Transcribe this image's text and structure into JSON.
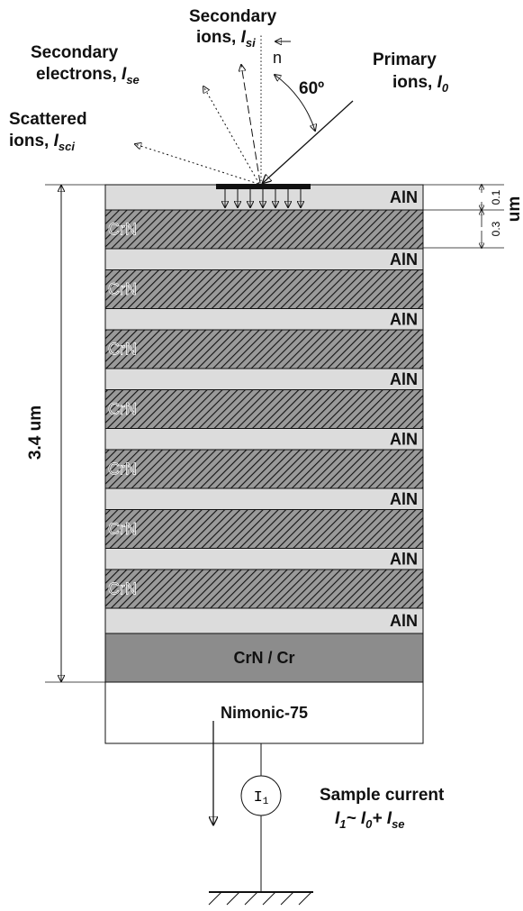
{
  "labels": {
    "secondary_ions": {
      "line1": "Secondary",
      "line2": "ions, ",
      "symbol": "I",
      "sub": "si"
    },
    "normal": "n",
    "angle": "60º",
    "primary_ions": {
      "line1": "Primary",
      "line2": "ions, ",
      "symbol": "I",
      "sub": "0"
    },
    "secondary_electrons": {
      "line1": "Secondary",
      "line2": "electrons, ",
      "symbol": "I",
      "sub": "se"
    },
    "scattered_ions": {
      "line1": "Scattered",
      "line2": "ions, ",
      "symbol": "I",
      "sub": "sci"
    }
  },
  "layers": [
    "AlN",
    "CrN",
    "AlN",
    "CrN",
    "AlN",
    "CrN",
    "AlN",
    "CrN",
    "AlN",
    "CrN",
    "AlN",
    "CrN",
    "AlN",
    "CrN",
    "AlN",
    "CrN / Cr",
    "Nimonic-75"
  ],
  "dimensions": {
    "top_layer": "0.1",
    "second_layer": "0.3",
    "unit": "um",
    "total": "3.4 um"
  },
  "circuit": {
    "title": "Sample current",
    "formula": {
      "t1": "I",
      "s1": "1",
      "op1": "~ ",
      "t2": "I",
      "s2": "0",
      "op2": "+ ",
      "t3": "I",
      "s3": "se"
    },
    "meter": {
      "symbol": "I",
      "sub": "1"
    }
  }
}
